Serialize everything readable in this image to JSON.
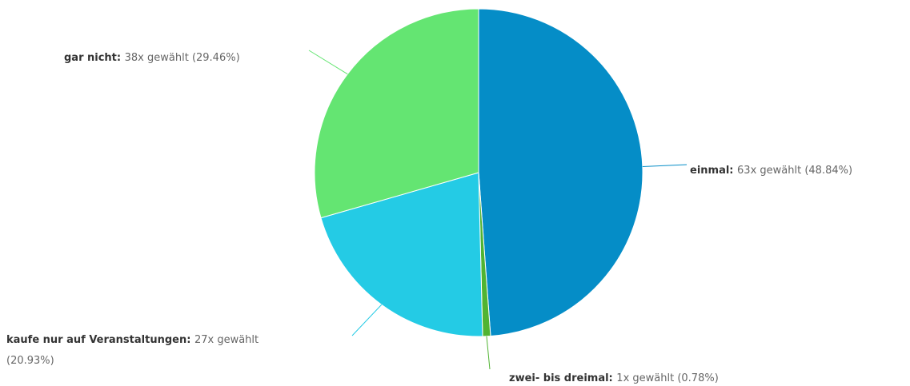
{
  "chart_data": {
    "type": "pie",
    "title": "",
    "suffix_text": "x gewählt",
    "slices": [
      {
        "name": "einmal",
        "count_text": "63x gewählt",
        "pct_text": "(48.84%)",
        "value": 63,
        "percent": 48.84,
        "color": "#058DC7"
      },
      {
        "name": "zwei- bis dreimal",
        "count_text": "1x gewählt",
        "pct_text": "(0.78%)",
        "value": 1,
        "percent": 0.78,
        "color": "#50B432"
      },
      {
        "name": "kaufe nur auf Veranstaltungen",
        "count_text": "27x gewählt",
        "pct_text": "(20.93%)",
        "value": 27,
        "percent": 20.93,
        "color": "#24CBE5"
      },
      {
        "name": "gar nicht",
        "count_text": "38x gewählt",
        "pct_text": "(29.46%)",
        "value": 38,
        "percent": 29.46,
        "color": "#64E572"
      }
    ]
  }
}
